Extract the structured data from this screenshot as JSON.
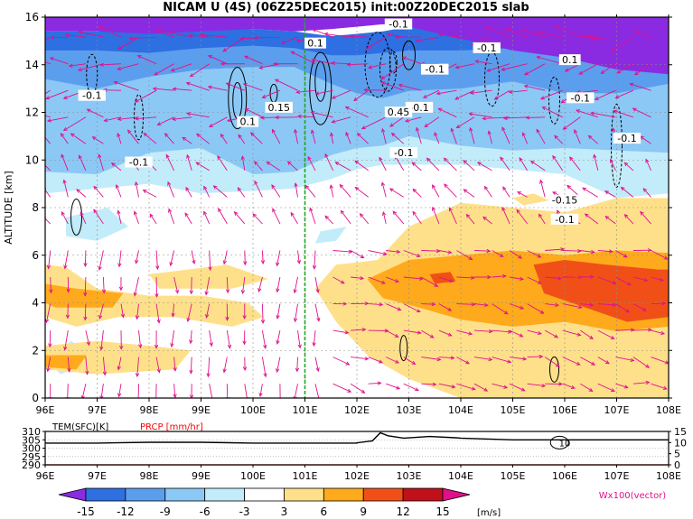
{
  "title": "NICAM U (4S) (06Z25DEC2015) init:00Z20DEC2015 slab",
  "chart_data": [
    {
      "type": "heatmap",
      "title": "NICAM U (4S) (06Z25DEC2015) init:00Z20DEC2015 slab",
      "xlabel": "",
      "ylabel": "ALTITUDE [km]",
      "x_ticks": [
        "96E",
        "97E",
        "98E",
        "99E",
        "100E",
        "101E",
        "102E",
        "103E",
        "104E",
        "105E",
        "106E",
        "107E",
        "108E"
      ],
      "x_range": [
        96,
        108
      ],
      "y_ticks": [
        "0",
        "2",
        "4",
        "6",
        "8",
        "10",
        "12",
        "14",
        "16"
      ],
      "y_range": [
        0,
        16
      ],
      "grid": true,
      "reference_line_x": 101,
      "shading_levels": [
        {
          "from": 3,
          "to": 6,
          "color": "#ffe08a"
        },
        {
          "from": 6,
          "to": 9,
          "color": "#ffaa1d"
        },
        {
          "from": 9,
          "to": 12,
          "color": "#f05018"
        },
        {
          "from": -3,
          "to": -6,
          "color": "#c2ecfa"
        },
        {
          "from": -6,
          "to": -9,
          "color": "#8cc8f5"
        },
        {
          "from": -9,
          "to": -12,
          "color": "#5c9eee"
        },
        {
          "from": -12,
          "to": -15,
          "color": "#2e6fe2"
        },
        {
          "from": -15,
          "to": -18,
          "color": "#8a2be2"
        }
      ],
      "contour_labels": [
        "-0.1",
        "-0.1",
        "-0.1",
        "-0.1",
        "-0.1",
        "-0.1",
        "-0.1",
        "-0.1",
        "0.1",
        "0.1",
        "0.1",
        "0.15",
        "0.45",
        "-0.15",
        "-0.1",
        "-0.1"
      ],
      "vector_label": "Wx100(vector)",
      "vector_color": "#e0108c"
    },
    {
      "type": "line",
      "series": [
        {
          "name": "TEM(SFC)[K]",
          "color": "#000000",
          "values": [
            303,
            303,
            303.5,
            303.5,
            303,
            303,
            303,
            309,
            306,
            305,
            305,
            305,
            305
          ]
        },
        {
          "name": "PRCP [mm/hr]",
          "color": "#ff0000",
          "values": [
            0,
            0,
            0,
            0,
            0,
            0,
            0,
            0,
            0,
            0,
            0,
            0,
            0
          ]
        }
      ],
      "x_ticks": [
        "96E",
        "97E",
        "98E",
        "99E",
        "100E",
        "101E",
        "102E",
        "103E",
        "104E",
        "105E",
        "106E",
        "107E",
        "108E"
      ],
      "left_ticks": [
        "310",
        "305",
        "300",
        "295",
        "290"
      ],
      "left_range": [
        290,
        310
      ],
      "right_ticks": [
        "15",
        "10",
        "5",
        "0"
      ],
      "right_range": [
        0,
        15
      ],
      "annotation": "10"
    }
  ],
  "colorbar": {
    "labels": [
      "-15",
      "-12",
      "-9",
      "-6",
      "-3",
      "3",
      "6",
      "9",
      "12",
      "15"
    ],
    "colors": [
      "#8a2be2",
      "#2e6fe2",
      "#5c9eee",
      "#8cc8f5",
      "#c2ecfa",
      "#ffffff",
      "#ffe08a",
      "#ffaa1d",
      "#f05018",
      "#c0101a",
      "#e0108c"
    ],
    "unit": "[m/s]"
  }
}
